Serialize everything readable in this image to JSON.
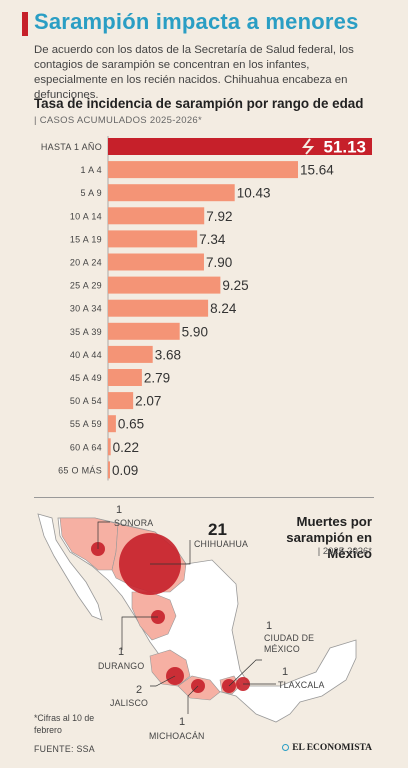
{
  "header": {
    "title": "Sarampión impacta a menores",
    "subtitle": "De acuerdo con los datos de la Secretaría de Salud federal, los contagios de sarampión se concentran en los infantes, especialmente en los recién nacidos. Chihuahua encabeza en defunciones."
  },
  "chart_data": {
    "type": "bar",
    "orientation": "horizontal",
    "title": "Tasa de incidencia de sarampión por rango de edad",
    "subtitle": "| CASOS ACUMULADOS 2025-2026*",
    "categories": [
      "HASTA 1 AÑO",
      "1 A 4",
      "5 A 9",
      "10 A 14",
      "15 A 19",
      "20 A 24",
      "25 A 29",
      "30 A 34",
      "35 A 39",
      "40 A 44",
      "45 A 49",
      "50 A 54",
      "55 A 59",
      "60 A 64",
      "65 O MÁS"
    ],
    "value_labels": [
      "51.13",
      "15.64",
      "10.43",
      "7.92",
      "7.34",
      "7.90",
      "9.25",
      "8.24",
      "5.90",
      "3.68",
      "2.79",
      "2.07",
      "0.65",
      "0.22",
      "0.09"
    ],
    "values": [
      51.13,
      15.64,
      10.43,
      7.92,
      7.34,
      7.9,
      9.25,
      8.24,
      5.9,
      3.68,
      2.79,
      2.07,
      0.65,
      0.22,
      0.09
    ],
    "colors": {
      "bar": "#f49476",
      "highlight": "#c6202a",
      "axis": "#999999"
    },
    "broken_axis_on_first_bar": true
  },
  "map_section": {
    "title_lines": [
      "Muertes por",
      "sarampión en",
      "México"
    ],
    "subtitle": "| 2025-2026*",
    "deaths": [
      {
        "state": "SONORA",
        "count": "1"
      },
      {
        "state": "CHIHUAHUA",
        "count": "21"
      },
      {
        "state": "DURANGO",
        "count": "1"
      },
      {
        "state": "JALISCO",
        "count": "2"
      },
      {
        "state": "MICHOACÁN",
        "count": "1"
      },
      {
        "state": "CIUDAD DE MÉXICO",
        "count": "1"
      },
      {
        "state": "TLAXCALA",
        "count": "1"
      }
    ],
    "colors": {
      "land": "#ffffff",
      "affected": "#f6b0a3",
      "bubble": "#c6202a",
      "border": "#999999"
    }
  },
  "footer": {
    "note": "*Cifras al 10 de febrero",
    "source": "FUENTE: SSA",
    "brand": "EL ECONOMISTA"
  }
}
